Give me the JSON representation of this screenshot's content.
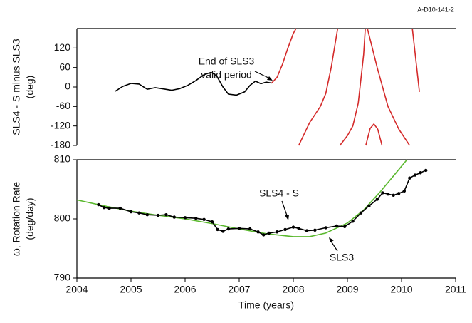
{
  "chart_data": [
    {
      "type": "line",
      "note_label": "A-D10-141-2",
      "ylabel": [
        "SLS4 - S minus SLS3",
        "(deg)"
      ],
      "xlim": [
        2004,
        2011
      ],
      "ylim": [
        -180,
        180
      ],
      "yticks": [
        -180,
        -120,
        -60,
        0,
        60,
        120
      ],
      "annotations": [
        [
          "End of SLS3",
          "valid period"
        ]
      ],
      "series": [
        {
          "color": "#000000",
          "x": [
            2004.71,
            2004.85,
            2005.0,
            2005.15,
            2005.3,
            2005.45,
            2005.6,
            2005.75,
            2005.9,
            2006.05,
            2006.2,
            2006.35,
            2006.48,
            2006.58,
            2006.7,
            2006.8,
            2006.95,
            2007.1,
            2007.2,
            2007.3,
            2007.4,
            2007.5,
            2007.6
          ],
          "values": [
            -13,
            2,
            11,
            9,
            -7,
            -2,
            -6,
            -10,
            -5,
            5,
            20,
            38,
            45,
            35,
            0,
            -22,
            -25,
            -15,
            5,
            18,
            10,
            15,
            12
          ]
        },
        {
          "color": "#d42a2a",
          "x": [
            2007.6,
            2007.7,
            2007.8,
            2007.9,
            2008.0,
            2008.05,
            null,
            2008.1,
            2008.3,
            2008.5,
            2008.6,
            2008.7,
            2008.82,
            null,
            2008.86,
            2009.0,
            2009.1,
            2009.2,
            2009.3,
            2009.33,
            null,
            2009.37,
            2009.55,
            2009.75,
            2009.95,
            2010.15,
            null,
            2009.34,
            2009.42,
            2009.49,
            2009.56,
            2009.64,
            null,
            2010.2,
            2010.28,
            2010.33
          ],
          "values": [
            12,
            30,
            70,
            120,
            165,
            180,
            null,
            -180,
            -110,
            -60,
            -20,
            60,
            180,
            null,
            -180,
            -150,
            -120,
            -50,
            100,
            180,
            null,
            180,
            60,
            -60,
            -130,
            -180,
            null,
            -180,
            -128,
            -114,
            -130,
            -180,
            null,
            180,
            60,
            -15
          ]
        }
      ]
    },
    {
      "type": "line",
      "ylabel": [
        "ω, Rotation Rate",
        "(deg/day)"
      ],
      "xlabel": "Time (years)",
      "xlim": [
        2004,
        2011
      ],
      "xticks": [
        2004,
        2005,
        2006,
        2007,
        2008,
        2009,
        2010,
        2011
      ],
      "ylim": [
        790,
        810
      ],
      "yticks": [
        790,
        800,
        810
      ],
      "annotations": [
        [
          "SLS4 - S"
        ],
        [
          "SLS3"
        ]
      ],
      "series": [
        {
          "color": "#5ab82e",
          "x": [
            2004.0,
            2004.5,
            2005.0,
            2005.5,
            2006.0,
            2006.5,
            2007.0,
            2007.5,
            2008.0,
            2008.3,
            2008.6,
            2009.0,
            2009.3,
            2009.6,
            2009.9,
            2010.1
          ],
          "values": [
            803.2,
            802.2,
            801.3,
            800.6,
            800.0,
            799.2,
            798.3,
            797.5,
            797.0,
            797.0,
            797.6,
            799.3,
            801.5,
            804.5,
            807.8,
            810.0
          ]
        },
        {
          "color": "#000000",
          "markers": true,
          "x": [
            2004.4,
            2004.5,
            2004.6,
            2004.8,
            2005.0,
            2005.15,
            2005.3,
            2005.5,
            2005.65,
            2005.8,
            2006.0,
            2006.2,
            2006.35,
            2006.5,
            2006.6,
            2006.7,
            2006.8,
            2007.0,
            2007.2,
            2007.35,
            2007.45,
            2007.55,
            2007.7,
            2007.85,
            2008.0,
            2008.1,
            2008.25,
            2008.4,
            2008.6,
            2008.8,
            2008.95,
            2009.1,
            2009.25,
            2009.4,
            2009.55,
            2009.65,
            2009.75,
            2009.85,
            2009.95,
            2010.05,
            2010.15,
            2010.25,
            2010.35,
            2010.45
          ],
          "values": [
            802.4,
            801.9,
            801.8,
            801.8,
            801.2,
            801.0,
            800.7,
            800.6,
            800.7,
            800.3,
            800.2,
            800.1,
            799.9,
            799.5,
            798.2,
            797.9,
            798.3,
            798.4,
            798.3,
            797.8,
            797.3,
            797.6,
            797.8,
            798.2,
            798.6,
            798.4,
            798.0,
            798.1,
            798.5,
            798.8,
            798.7,
            799.6,
            801.0,
            802.2,
            803.3,
            804.4,
            804.2,
            804.0,
            804.3,
            804.7,
            806.9,
            807.4,
            807.8,
            808.2
          ]
        }
      ]
    }
  ]
}
